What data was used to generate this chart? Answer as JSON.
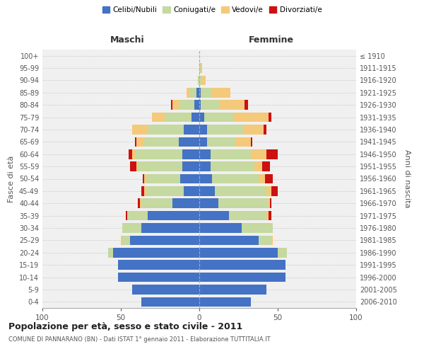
{
  "age_groups": [
    "0-4",
    "5-9",
    "10-14",
    "15-19",
    "20-24",
    "25-29",
    "30-34",
    "35-39",
    "40-44",
    "45-49",
    "50-54",
    "55-59",
    "60-64",
    "65-69",
    "70-74",
    "75-79",
    "80-84",
    "85-89",
    "90-94",
    "95-99",
    "100+"
  ],
  "birth_years": [
    "2006-2010",
    "2001-2005",
    "1996-2000",
    "1991-1995",
    "1986-1990",
    "1981-1985",
    "1976-1980",
    "1971-1975",
    "1966-1970",
    "1961-1965",
    "1956-1960",
    "1951-1955",
    "1946-1950",
    "1941-1945",
    "1936-1940",
    "1931-1935",
    "1926-1930",
    "1921-1925",
    "1916-1920",
    "1911-1915",
    "≤ 1910"
  ],
  "colors": {
    "celibe": "#4472C4",
    "coniugato": "#c5d9a0",
    "vedovo": "#f5c97a",
    "divorziato": "#cc1111"
  },
  "maschi": {
    "celibe": [
      37,
      43,
      52,
      52,
      55,
      44,
      37,
      33,
      17,
      10,
      12,
      11,
      11,
      13,
      10,
      5,
      3,
      2,
      0,
      0,
      0
    ],
    "coniugato": [
      0,
      0,
      0,
      0,
      3,
      5,
      12,
      13,
      20,
      24,
      22,
      28,
      30,
      22,
      23,
      17,
      10,
      4,
      1,
      0,
      0
    ],
    "vedovo": [
      0,
      0,
      0,
      0,
      0,
      1,
      0,
      0,
      1,
      1,
      1,
      1,
      2,
      5,
      10,
      8,
      4,
      2,
      0,
      0,
      0
    ],
    "divorziato": [
      0,
      0,
      0,
      0,
      0,
      0,
      0,
      1,
      1,
      2,
      1,
      4,
      2,
      1,
      0,
      0,
      1,
      0,
      0,
      0,
      0
    ]
  },
  "femmine": {
    "nubile": [
      33,
      43,
      55,
      55,
      50,
      38,
      27,
      19,
      12,
      10,
      8,
      7,
      7,
      5,
      5,
      3,
      1,
      1,
      0,
      0,
      0
    ],
    "coniugata": [
      0,
      0,
      0,
      0,
      6,
      8,
      20,
      24,
      32,
      33,
      30,
      28,
      26,
      18,
      23,
      19,
      12,
      7,
      2,
      1,
      0
    ],
    "vedova": [
      0,
      0,
      0,
      0,
      0,
      1,
      0,
      1,
      1,
      3,
      4,
      5,
      10,
      10,
      13,
      22,
      16,
      12,
      2,
      1,
      0
    ],
    "divorziata": [
      0,
      0,
      0,
      0,
      0,
      0,
      0,
      2,
      1,
      4,
      5,
      5,
      7,
      1,
      2,
      2,
      2,
      0,
      0,
      0,
      0
    ]
  },
  "xlim": 100,
  "title": "Popolazione per età, sesso e stato civile - 2011",
  "subtitle": "COMUNE DI PANNARANO (BN) - Dati ISTAT 1° gennaio 2011 - Elaborazione TUTTITALIA.IT",
  "ylabel_left": "Fasce di età",
  "ylabel_right": "Anni di nascita",
  "xlabel_left": "Maschi",
  "xlabel_right": "Femmine",
  "bg_color": "#ffffff",
  "plot_bg": "#f0f0f0"
}
